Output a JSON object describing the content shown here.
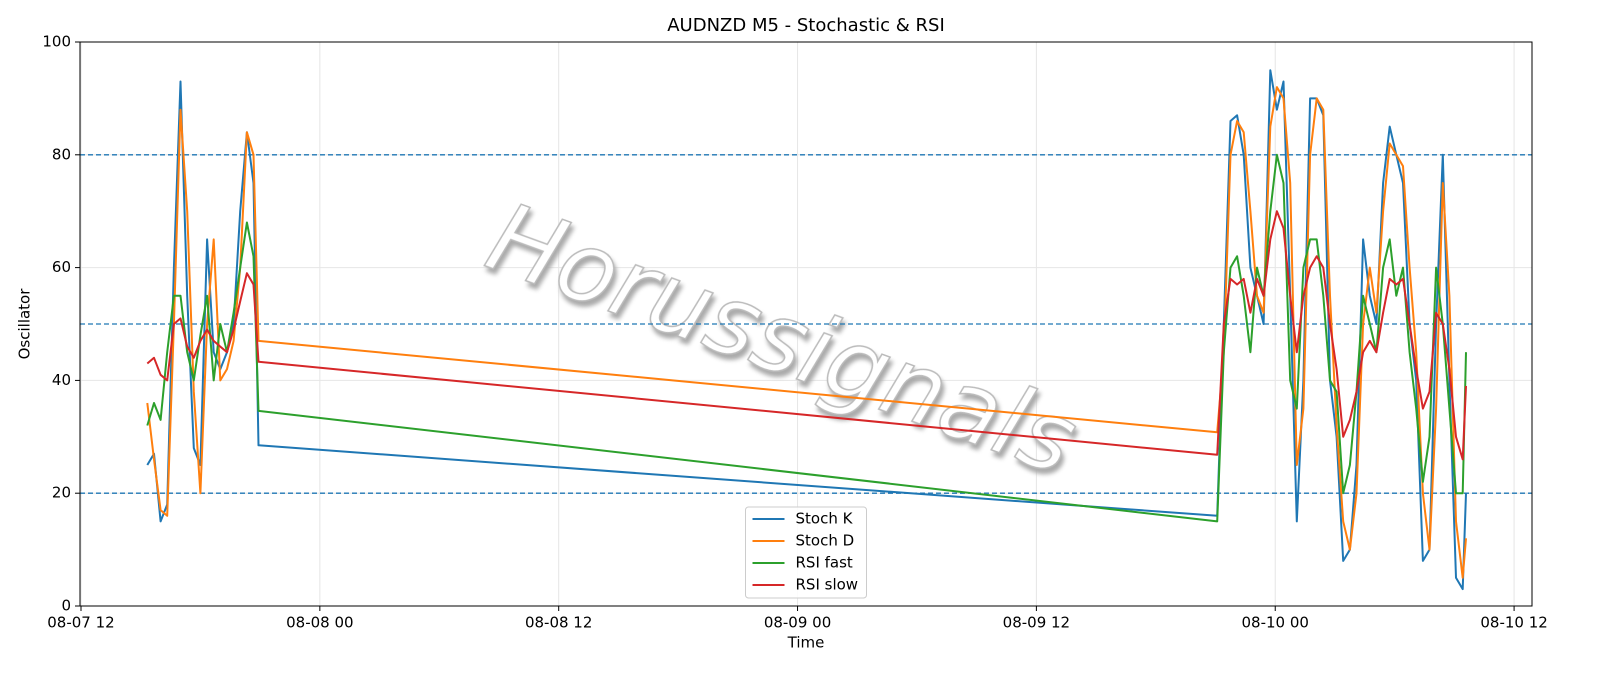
{
  "chart_data": {
    "type": "line",
    "title": "AUDNZD M5 - Stochastic & RSI",
    "xlabel": "Time",
    "ylabel": "Oscillator",
    "watermark": "Horussignals",
    "x": [
      "08-07 15:20",
      "08-07 15:40",
      "08-07 16:00",
      "08-07 16:20",
      "08-07 16:40",
      "08-07 17:00",
      "08-07 17:20",
      "08-07 17:40",
      "08-07 18:00",
      "08-07 18:20",
      "08-07 18:40",
      "08-07 19:00",
      "08-07 19:20",
      "08-07 19:40",
      "08-07 20:00",
      "08-07 20:20",
      "08-07 20:40",
      "08-07 20:55",
      "08-09 21:05",
      "08-09 21:25",
      "08-09 21:45",
      "08-09 22:05",
      "08-09 22:25",
      "08-09 22:45",
      "08-09 23:05",
      "08-09 23:25",
      "08-09 23:45",
      "08-10 00:05",
      "08-10 00:25",
      "08-10 00:45",
      "08-10 01:05",
      "08-10 01:25",
      "08-10 01:45",
      "08-10 02:05",
      "08-10 02:25",
      "08-10 02:45",
      "08-10 03:05",
      "08-10 03:25",
      "08-10 03:45",
      "08-10 04:05",
      "08-10 04:25",
      "08-10 04:45",
      "08-10 05:05",
      "08-10 05:25",
      "08-10 05:45",
      "08-10 06:05",
      "08-10 06:25",
      "08-10 06:45",
      "08-10 07:05",
      "08-10 07:25",
      "08-10 07:45",
      "08-10 08:05",
      "08-10 08:25",
      "08-10 08:45",
      "08-10 09:05",
      "08-10 09:25",
      "08-10 09:35"
    ],
    "series": [
      {
        "name": "Stoch K",
        "color": "#1f77b4",
        "values": [
          25,
          27,
          15,
          18,
          60,
          93,
          55,
          28,
          25,
          65,
          45,
          42,
          45,
          50,
          70,
          84,
          75,
          28.5,
          16,
          50,
          86,
          87,
          80,
          60,
          55,
          50,
          95,
          88,
          93,
          55,
          15,
          40,
          90,
          90,
          87,
          40,
          30,
          8,
          10,
          25,
          65,
          55,
          50,
          75,
          85,
          80,
          75,
          50,
          40,
          8,
          10,
          50,
          80,
          40,
          5,
          3,
          20
        ]
      },
      {
        "name": "Stoch D",
        "color": "#ff7f0e",
        "values": [
          36,
          26,
          17,
          16,
          50,
          88,
          70,
          38,
          20,
          50,
          65,
          40,
          42,
          47,
          60,
          84,
          80,
          47,
          30.8,
          45,
          80,
          86,
          84,
          70,
          55,
          52,
          85,
          92,
          90,
          75,
          25,
          35,
          80,
          90,
          88,
          55,
          32,
          15,
          10,
          20,
          50,
          60,
          52,
          70,
          82,
          80,
          78,
          60,
          45,
          20,
          10,
          35,
          75,
          55,
          15,
          5,
          12
        ]
      },
      {
        "name": "RSI fast",
        "color": "#2ca02c",
        "values": [
          32,
          36,
          33,
          45,
          55,
          55,
          45,
          40,
          48,
          55,
          40,
          50,
          45,
          52,
          60,
          68,
          62,
          34.6,
          15,
          45,
          60,
          62,
          55,
          45,
          60,
          55,
          70,
          80,
          75,
          40,
          35,
          60,
          65,
          65,
          55,
          40,
          38,
          20,
          25,
          38,
          55,
          50,
          45,
          60,
          65,
          55,
          60,
          45,
          35,
          22,
          30,
          60,
          50,
          35,
          20,
          20,
          45
        ]
      },
      {
        "name": "RSI slow",
        "color": "#d62728",
        "values": [
          43,
          44,
          41,
          40,
          50,
          51,
          46,
          44,
          47,
          49,
          47,
          46,
          45,
          49,
          54,
          59,
          57,
          43.3,
          26.8,
          50,
          58,
          57,
          58,
          52,
          58,
          55,
          65,
          70,
          67,
          55,
          45,
          55,
          60,
          62,
          60,
          50,
          42,
          30,
          33,
          38,
          45,
          47,
          45,
          52,
          58,
          57,
          58,
          50,
          42,
          35,
          38,
          52,
          50,
          42,
          30,
          26,
          39
        ]
      }
    ],
    "xlim": [
      "08-07 11:57",
      "08-10 12:54"
    ],
    "xticks": [
      "08-07 12",
      "08-08 00",
      "08-08 12",
      "08-09 00",
      "08-09 12",
      "08-10 00",
      "08-10 12"
    ],
    "ylim": [
      0,
      100
    ],
    "yticks": [
      0,
      20,
      40,
      60,
      80,
      100
    ],
    "hlines": [
      20,
      50,
      80
    ],
    "hline_color": "#1f77b4",
    "grid": true,
    "legend": "lower center"
  }
}
